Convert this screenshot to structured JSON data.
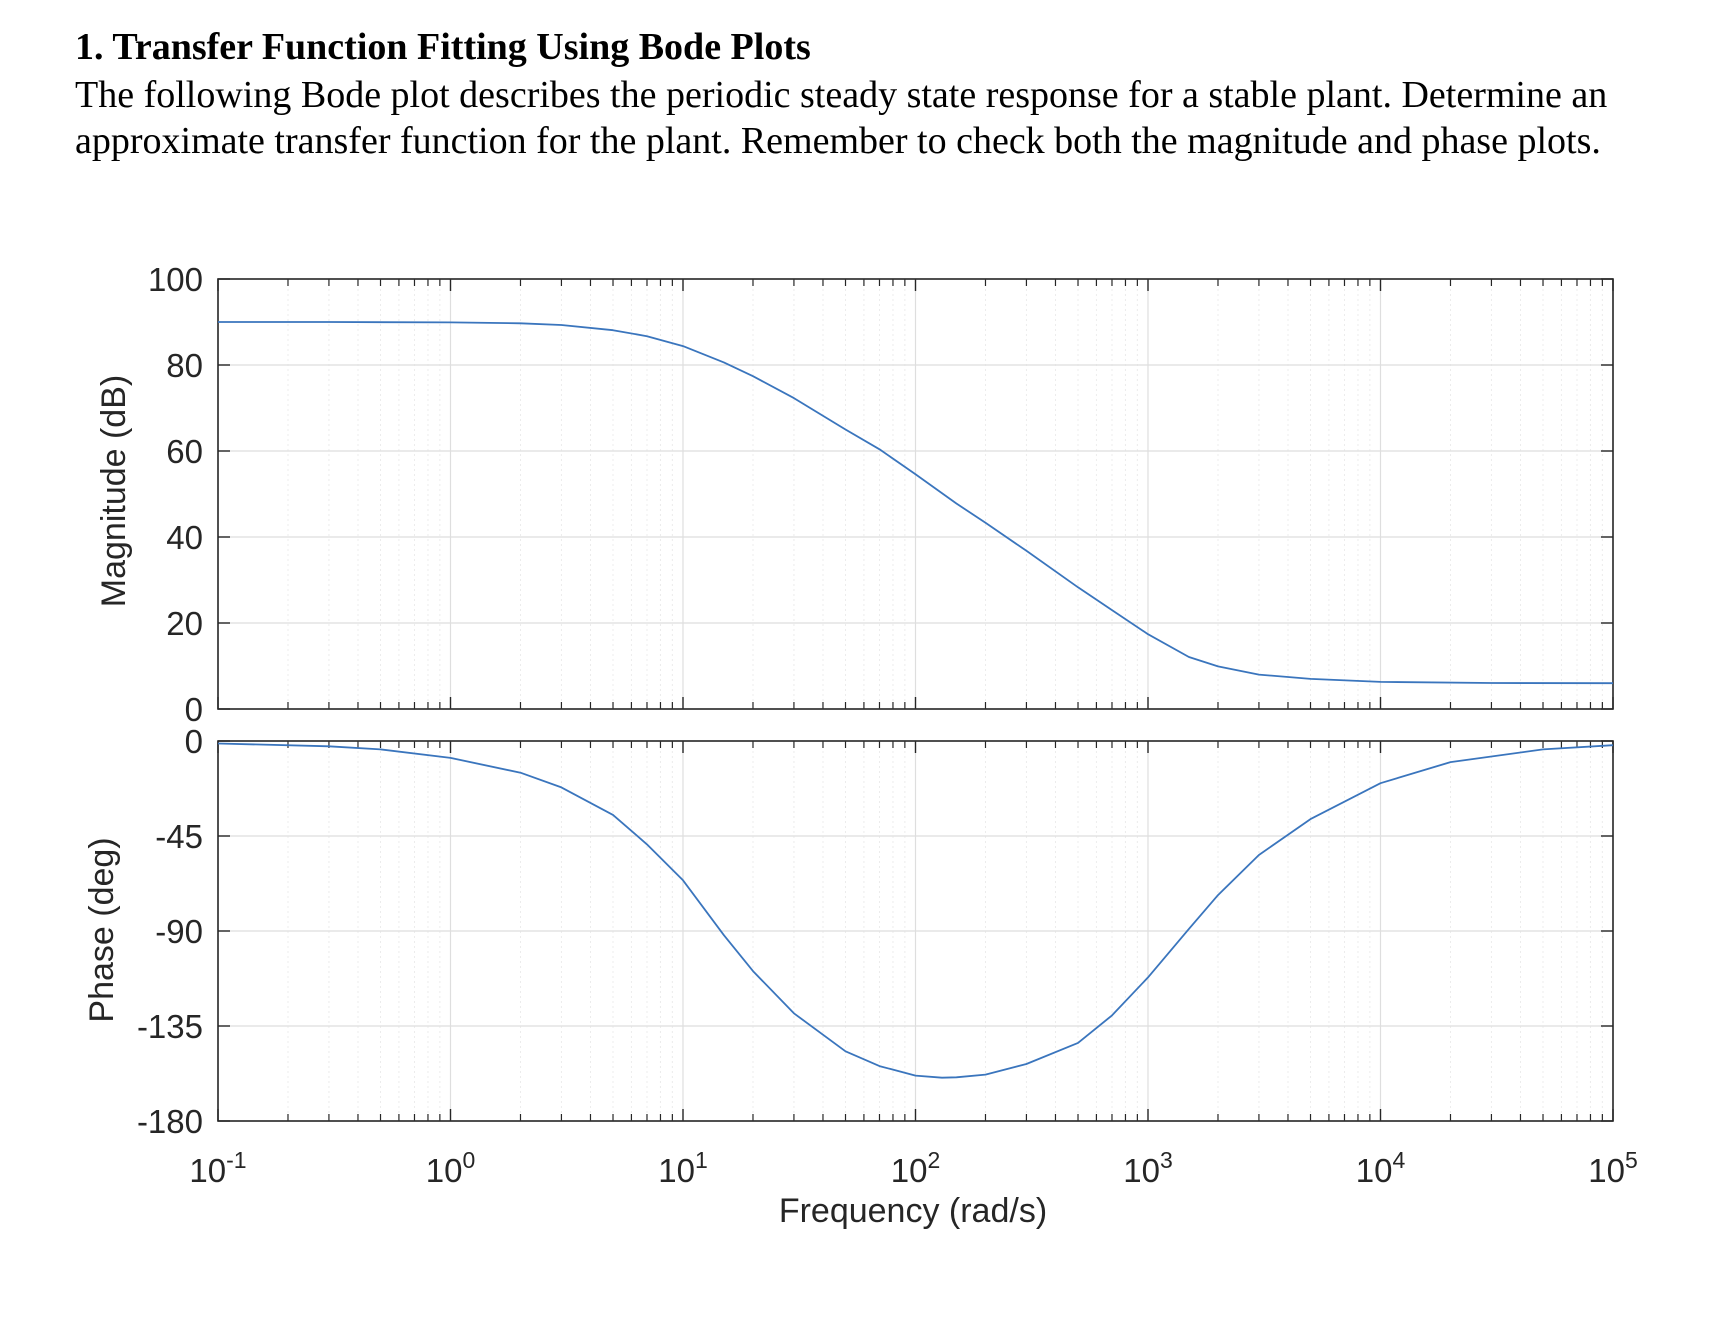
{
  "document": {
    "heading": "1.  Transfer Function Fitting Using Bode Plots",
    "body": "The following Bode plot describes the periodic steady state response for a stable plant. Determine an approximate transfer function for the plant. Remember to check both the magnitude and phase plots."
  },
  "chart_data": {
    "type": "line",
    "title": "",
    "xlabel": "Frequency  (rad/s)",
    "xscale": "log",
    "xlim": [
      0.1,
      100000
    ],
    "x_tick_labels": [
      {
        "base": "10",
        "exp": "-1"
      },
      {
        "base": "10",
        "exp": "0"
      },
      {
        "base": "10",
        "exp": "1"
      },
      {
        "base": "10",
        "exp": "2"
      },
      {
        "base": "10",
        "exp": "3"
      },
      {
        "base": "10",
        "exp": "4"
      },
      {
        "base": "10",
        "exp": "5"
      }
    ],
    "grid": true,
    "line_color": "#3a75bd",
    "panels": [
      {
        "name": "magnitude",
        "ylabel": "Magnitude (dB)",
        "ylim": [
          0,
          100
        ],
        "yticks": [
          0,
          20,
          40,
          60,
          80,
          100
        ],
        "ytick_labels": [
          "0",
          "20",
          "40",
          "60",
          "80",
          "100"
        ],
        "series": [
          {
            "x": [
              0.1,
              0.3,
              1,
              2,
              3,
              5,
              7,
              10,
              15,
              20,
              30,
              50,
              70,
              100,
              150,
              200,
              300,
              500,
              700,
              1000,
              1500,
              2000,
              3000,
              5000,
              10000,
              30000,
              100000
            ],
            "y": [
              90,
              90,
              89.9,
              89.7,
              89.3,
              88.1,
              86.7,
              84.4,
              80.6,
              77.4,
              72.3,
              65.0,
              60.4,
              54.6,
              47.8,
              43.3,
              36.8,
              28.3,
              23.0,
              17.4,
              12.1,
              9.9,
              8.0,
              7.0,
              6.3,
              6.05,
              6
            ]
          }
        ]
      },
      {
        "name": "phase",
        "ylabel": "Phase (deg)",
        "ylim": [
          -180,
          0
        ],
        "yticks": [
          -180,
          -135,
          -90,
          -45,
          0
        ],
        "ytick_labels": [
          "-180",
          "-135",
          "-90",
          "-45",
          "0"
        ],
        "series": [
          {
            "x": [
              0.1,
              0.3,
              0.5,
              1,
              2,
              3,
              5,
              7,
              10,
              15,
              20,
              30,
              50,
              70,
              100,
              130,
              150,
              200,
              300,
              500,
              700,
              1000,
              1500,
              2000,
              3000,
              5000,
              10000,
              20000,
              50000,
              100000
            ],
            "y": [
              -1.2,
              -2.5,
              -4,
              -8,
              -15,
              -22,
              -35,
              -49,
              -66,
              -92,
              -109,
              -129,
              -147,
              -154,
              -158.5,
              -159.5,
              -159.3,
              -158,
              -153,
              -143,
              -130,
              -112,
              -89,
              -73,
              -54,
              -37,
              -20,
              -10,
              -4,
              -2
            ]
          }
        ]
      }
    ]
  }
}
